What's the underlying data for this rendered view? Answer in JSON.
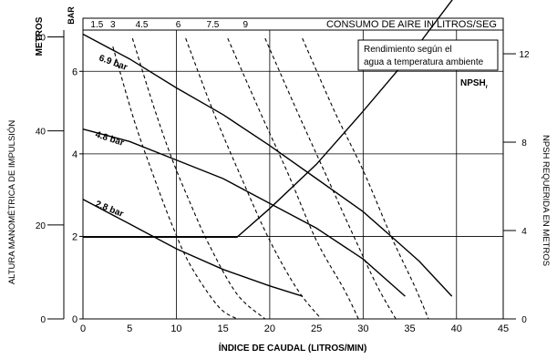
{
  "chart_data": {
    "type": "line",
    "xlabel": "ÍNDICE DE CAUDAL (LITROS/MIN)",
    "xlim": [
      0,
      45
    ],
    "x_ticks": [
      "0",
      "5",
      "10",
      "15",
      "20",
      "25",
      "30",
      "35",
      "40",
      "45"
    ],
    "ylabel_outer": "ALTURA MANOMÉTRICA DE IMPULSIÓN",
    "ylabel_outer_units": "METROS",
    "y_outer_ticks": [
      "0",
      "20",
      "40",
      "60"
    ],
    "ylabel_inner_units": "BAR",
    "ylim_bar": [
      0,
      7
    ],
    "y_inner_ticks": [
      "0",
      "2",
      "4",
      "6"
    ],
    "ylabel_right": "NPSH REQUERIDA EN METROS",
    "y_right_ticks": [
      "0",
      "4",
      "8",
      "12"
    ],
    "top_axis_title": "CONSUMO DE AIRE IN LITROS/SEG",
    "top_ticks": [
      "1.5",
      "3",
      "4.5",
      "6",
      "7.5",
      "9"
    ],
    "legend_box_line1": "Rendimiento según el",
    "legend_box_line2": "agua a temperatura ambiente",
    "grid": true,
    "series": [
      {
        "name": "6.9 bar",
        "x": [
          0,
          5,
          10,
          15,
          20,
          25,
          30,
          33,
          36,
          39.5
        ],
        "y": [
          6.9,
          6.3,
          5.6,
          4.95,
          4.2,
          3.4,
          2.6,
          2.0,
          1.4,
          0.55
        ]
      },
      {
        "name": "4.8 bar",
        "x": [
          0,
          5,
          10,
          15,
          20,
          25,
          30,
          34.5
        ],
        "y": [
          4.6,
          4.3,
          3.85,
          3.4,
          2.8,
          2.2,
          1.45,
          0.55
        ]
      },
      {
        "name": "2.8 bar",
        "x": [
          0,
          5,
          10,
          15,
          20,
          23.5
        ],
        "y": [
          2.9,
          2.3,
          1.7,
          1.2,
          0.8,
          0.55
        ]
      },
      {
        "name": "NPSHr",
        "x": [
          0,
          16.5,
          20,
          25,
          30,
          35,
          40
        ],
        "y": [
          3.7,
          3.7,
          5.0,
          7.0,
          9.4,
          11.9,
          14.7
        ]
      }
    ],
    "air_consumption_curves": [
      {
        "x": [
          3.2,
          5.5,
          7.5,
          9.5,
          11.5,
          14.5,
          16.5
        ],
        "y": [
          6.6,
          4.8,
          3.5,
          2.3,
          1.3,
          0.3,
          0
        ]
      },
      {
        "x": [
          5.3,
          7.5,
          9.5,
          11.5,
          13.5,
          16.5,
          19.5
        ],
        "y": [
          6.8,
          5.2,
          3.9,
          2.8,
          1.8,
          0.6,
          0
        ]
      },
      {
        "x": [
          11,
          14,
          17,
          20,
          23,
          25.5
        ],
        "y": [
          6.8,
          5.0,
          3.4,
          1.9,
          0.7,
          0
        ]
      },
      {
        "x": [
          15.5,
          19,
          22,
          25,
          28,
          29.5
        ],
        "y": [
          6.8,
          5.0,
          3.5,
          1.9,
          0.7,
          0
        ]
      },
      {
        "x": [
          19.5,
          23,
          26,
          29,
          31.5,
          33.5
        ],
        "y": [
          6.8,
          5.0,
          3.5,
          2.0,
          0.8,
          0
        ]
      },
      {
        "x": [
          23.5,
          27,
          30,
          33,
          35.5,
          37
        ],
        "y": [
          6.8,
          5.0,
          3.6,
          2.0,
          0.8,
          0
        ]
      }
    ],
    "npsh_label": "NPSH",
    "npsh_subscript": "r",
    "series_labels": [
      "6.9 bar",
      "4.8 bar",
      "2.8 bar"
    ]
  }
}
